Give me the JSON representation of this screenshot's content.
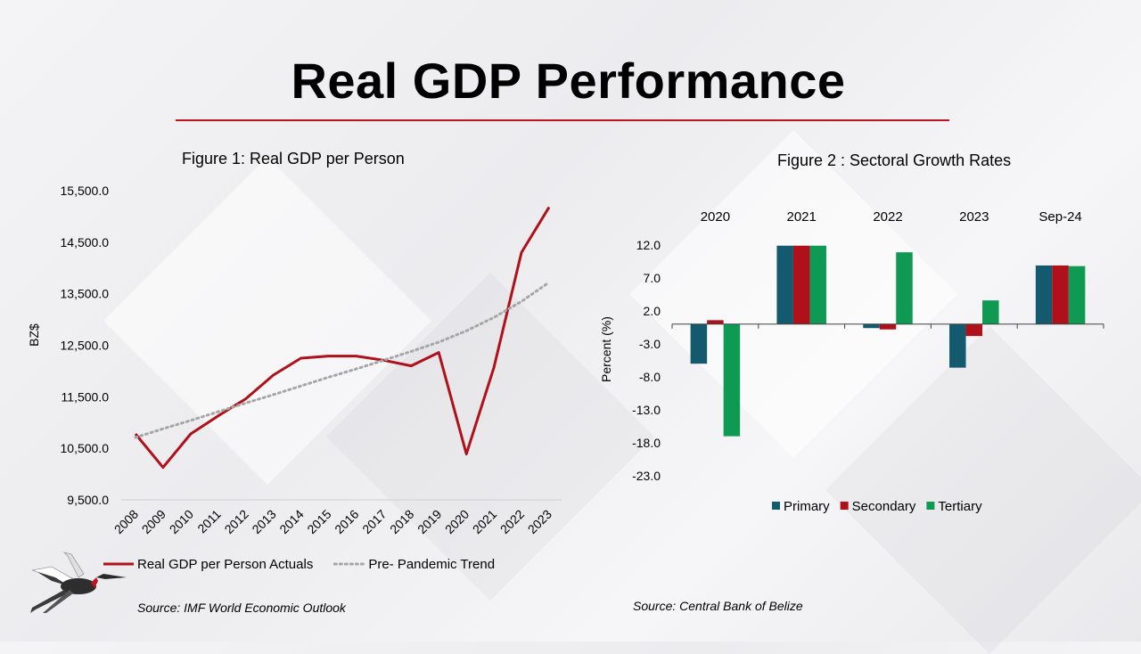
{
  "slide": {
    "title": "Real GDP Performance",
    "accent_color": "#c0141c"
  },
  "figure1": {
    "title": "Figure 1: Real GDP per Person",
    "source": "Source: IMF World Economic Outlook"
  },
  "figure2": {
    "title": "Figure 2 : Sectoral Growth Rates",
    "source": "Source: Central Bank of Belize"
  },
  "chart_data": [
    {
      "type": "line",
      "title": "Figure 1: Real GDP per Person",
      "ylabel": "BZ$",
      "xlabel": "",
      "ylim": [
        9500,
        15500
      ],
      "yticks": [
        "9,500.0",
        "10,500.0",
        "11,500.0",
        "12,500.0",
        "13,500.0",
        "14,500.0",
        "15,500.0"
      ],
      "x": [
        "2008",
        "2009",
        "2010",
        "2011",
        "2012",
        "2013",
        "2014",
        "2015",
        "2016",
        "2017",
        "2018",
        "2019",
        "2020",
        "2021",
        "2022",
        "2023"
      ],
      "grid": false,
      "legend_position": "bottom",
      "series": [
        {
          "name": "Real GDP per Person Actuals",
          "color": "#b0101a",
          "style": "solid",
          "values": [
            10780,
            10130,
            10780,
            11130,
            11460,
            11920,
            12250,
            12290,
            12290,
            12210,
            12100,
            12360,
            10390,
            12070,
            14300,
            15180
          ]
        },
        {
          "name": "Pre- Pandemic Trend",
          "color": "#a6a6a6",
          "style": "dotted",
          "values": [
            10710,
            10880,
            11040,
            11210,
            11380,
            11540,
            11710,
            11880,
            12040,
            12210,
            12380,
            12560,
            12780,
            13040,
            13350,
            13720
          ]
        }
      ]
    },
    {
      "type": "bar",
      "title": "Figure 2 : Sectoral Growth Rates",
      "ylabel": "Percent (%)",
      "xlabel": "",
      "ylim": [
        -23,
        12
      ],
      "yticks": [
        "12.0",
        "7.0",
        "2.0",
        "-3.0",
        "-8.0",
        "-13.0",
        "-18.0",
        "-23.0"
      ],
      "categories": [
        "2020",
        "2021",
        "2022",
        "2023",
        "Sep-24"
      ],
      "category_labels_position": "top",
      "legend_position": "bottom",
      "grid": false,
      "series": [
        {
          "name": "Primary",
          "color": "#145a6e",
          "values": [
            -6.0,
            11.9,
            -0.6,
            -6.6,
            8.9
          ]
        },
        {
          "name": "Secondary",
          "color": "#b0101a",
          "values": [
            0.6,
            11.9,
            -0.8,
            -1.8,
            8.9
          ]
        },
        {
          "name": "Tertiary",
          "color": "#0e9a52",
          "values": [
            -17.0,
            11.9,
            10.9,
            3.6,
            8.8
          ]
        }
      ]
    }
  ]
}
